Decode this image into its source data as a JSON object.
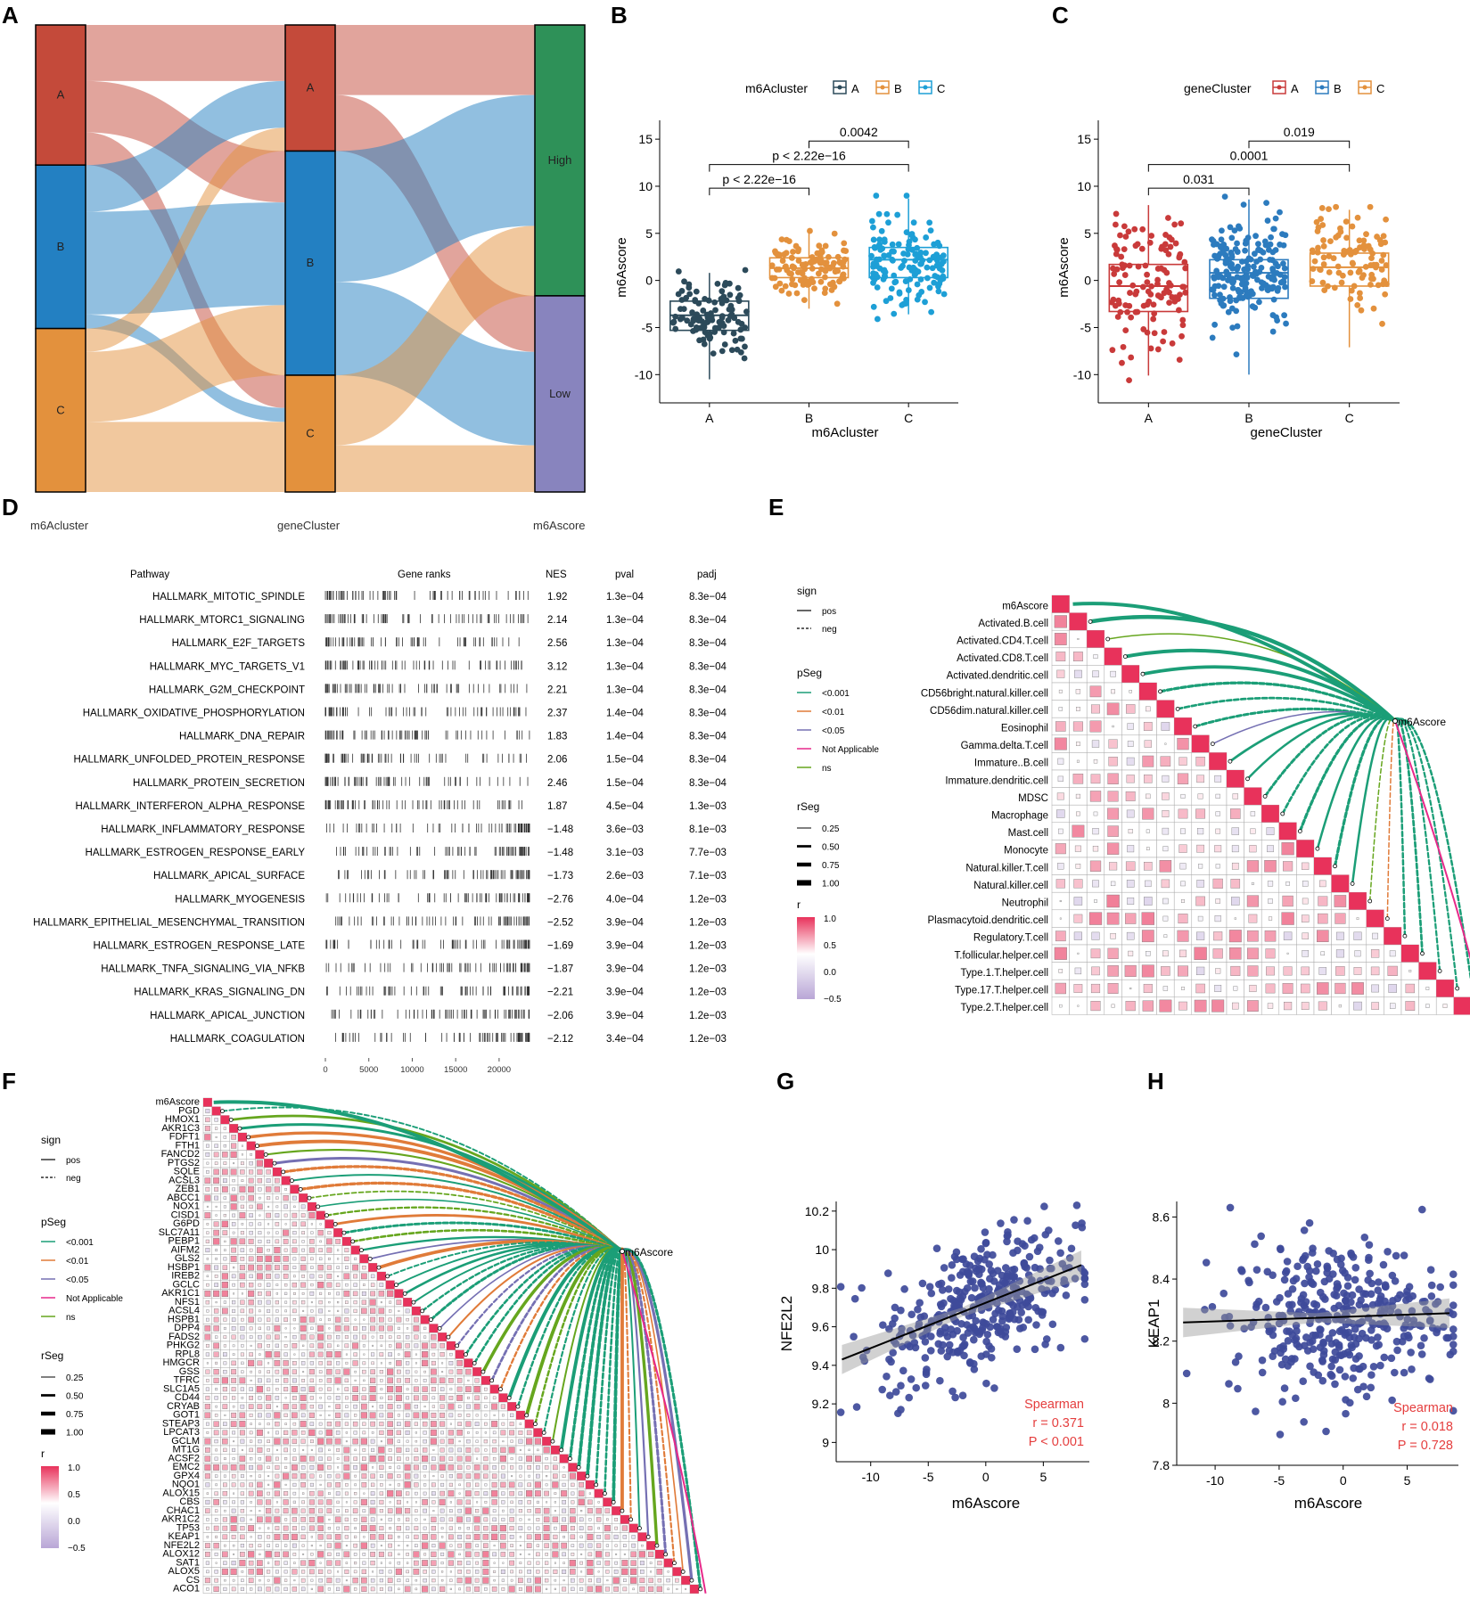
{
  "panel_letters": [
    "A",
    "B",
    "C",
    "D",
    "E",
    "F",
    "G",
    "H"
  ],
  "chart_data": [
    {
      "panel": "A",
      "type": "sankey",
      "axes": [
        "m6Acluster",
        "geneCluster",
        "m6Ascore"
      ],
      "nodes": {
        "m6Acluster": [
          {
            "name": "A",
            "color": "#C44A3A",
            "size": 0.3
          },
          {
            "name": "B",
            "color": "#2380C2",
            "size": 0.35
          },
          {
            "name": "C",
            "color": "#E3913D",
            "size": 0.35
          }
        ],
        "geneCluster": [
          {
            "name": "A",
            "color": "#C44A3A",
            "size": 0.27
          },
          {
            "name": "B",
            "color": "#2380C2",
            "size": 0.48
          },
          {
            "name": "C",
            "color": "#E3913D",
            "size": 0.25
          }
        ],
        "m6Ascore": [
          {
            "name": "High",
            "color": "#2E9158",
            "size": 0.58
          },
          {
            "name": "Low",
            "color": "#8884BE",
            "size": 0.42
          }
        ]
      },
      "flows_stage1": [
        {
          "from": "A",
          "to": "A",
          "value": 0.12
        },
        {
          "from": "A",
          "to": "B",
          "value": 0.11
        },
        {
          "from": "A",
          "to": "C",
          "value": 0.07
        },
        {
          "from": "B",
          "to": "A",
          "value": 0.1
        },
        {
          "from": "B",
          "to": "B",
          "value": 0.22
        },
        {
          "from": "B",
          "to": "C",
          "value": 0.03
        },
        {
          "from": "C",
          "to": "A",
          "value": 0.05
        },
        {
          "from": "C",
          "to": "B",
          "value": 0.15
        },
        {
          "from": "C",
          "to": "C",
          "value": 0.15
        }
      ],
      "flows_stage2": [
        {
          "from": "A",
          "to": "High",
          "value": 0.15
        },
        {
          "from": "A",
          "to": "Low",
          "value": 0.12
        },
        {
          "from": "B",
          "to": "High",
          "value": 0.28
        },
        {
          "from": "B",
          "to": "Low",
          "value": 0.2
        },
        {
          "from": "C",
          "to": "High",
          "value": 0.15
        },
        {
          "from": "C",
          "to": "Low",
          "value": 0.1
        }
      ]
    },
    {
      "panel": "B",
      "type": "boxplot",
      "legend_title": "m6Acluster",
      "groups": [
        {
          "name": "A",
          "color": "#2C4A5A",
          "q1": -5.3,
          "median": -3.7,
          "q3": -2.2,
          "whisker_low": -10.5,
          "whisker_high": 0.8,
          "n": 110
        },
        {
          "name": "B",
          "color": "#E3913D",
          "q1": 0.3,
          "median": 1.3,
          "q3": 2.4,
          "whisker_low": -3.0,
          "whisker_high": 5.5,
          "n": 120
        },
        {
          "name": "C",
          "color": "#1D9FD6",
          "q1": 0.3,
          "median": 2.2,
          "q3": 3.5,
          "whisker_low": -3.6,
          "whisker_high": 8.7,
          "n": 140
        }
      ],
      "comparisons": [
        {
          "g1": "A",
          "g2": "B",
          "label": "p < 2.22e−16",
          "y": 9.8
        },
        {
          "g1": "A",
          "g2": "C",
          "label": "p < 2.22e−16",
          "y": 12.3
        },
        {
          "g1": "B",
          "g2": "C",
          "label": "0.0042",
          "y": 14.8
        }
      ],
      "xlabel": "m6Acluster",
      "ylabel": "m6Ascore",
      "ylim": [
        -13,
        17
      ],
      "yticks": [
        -10,
        -5,
        0,
        5,
        10,
        15
      ]
    },
    {
      "panel": "C",
      "type": "boxplot",
      "legend_title": "geneCluster",
      "groups": [
        {
          "name": "A",
          "color": "#C93A3A",
          "q1": -3.3,
          "median": -0.6,
          "q3": 1.7,
          "whisker_low": -10.1,
          "whisker_high": 8.0,
          "n": 120
        },
        {
          "name": "B",
          "color": "#2C7BBE",
          "q1": -1.9,
          "median": 0.8,
          "q3": 2.2,
          "whisker_low": -10.0,
          "whisker_high": 8.6,
          "n": 190
        },
        {
          "name": "C",
          "color": "#E3913D",
          "q1": -0.6,
          "median": 1.4,
          "q3": 2.9,
          "whisker_low": -7.1,
          "whisker_high": 7.5,
          "n": 100
        }
      ],
      "comparisons": [
        {
          "g1": "A",
          "g2": "B",
          "label": "0.031",
          "y": 9.8
        },
        {
          "g1": "A",
          "g2": "C",
          "label": "0.0001",
          "y": 12.3
        },
        {
          "g1": "B",
          "g2": "C",
          "label": "0.019",
          "y": 14.8
        }
      ],
      "xlabel": "geneCluster",
      "ylabel": "m6Ascore",
      "ylim": [
        -13,
        17
      ],
      "yticks": [
        -10,
        -5,
        0,
        5,
        10,
        15
      ]
    },
    {
      "panel": "D",
      "type": "table",
      "columns": [
        "Pathway",
        "Gene ranks",
        "NES",
        "pval",
        "padj"
      ],
      "rows": [
        [
          "HALLMARK_MITOTIC_SPINDLE",
          "1.92",
          "1.3e−04",
          "8.3e−04"
        ],
        [
          "HALLMARK_MTORC1_SIGNALING",
          "2.14",
          "1.3e−04",
          "8.3e−04"
        ],
        [
          "HALLMARK_E2F_TARGETS",
          "2.56",
          "1.3e−04",
          "8.3e−04"
        ],
        [
          "HALLMARK_MYC_TARGETS_V1",
          "3.12",
          "1.3e−04",
          "8.3e−04"
        ],
        [
          "HALLMARK_G2M_CHECKPOINT",
          "2.21",
          "1.3e−04",
          "8.3e−04"
        ],
        [
          "HALLMARK_OXIDATIVE_PHOSPHORYLATION",
          "2.37",
          "1.4e−04",
          "8.3e−04"
        ],
        [
          "HALLMARK_DNA_REPAIR",
          "1.83",
          "1.4e−04",
          "8.3e−04"
        ],
        [
          "HALLMARK_UNFOLDED_PROTEIN_RESPONSE",
          "2.06",
          "1.5e−04",
          "8.3e−04"
        ],
        [
          "HALLMARK_PROTEIN_SECRETION",
          "2.46",
          "1.5e−04",
          "8.3e−04"
        ],
        [
          "HALLMARK_INTERFERON_ALPHA_RESPONSE",
          "1.87",
          "4.5e−04",
          "1.3e−03"
        ],
        [
          "HALLMARK_INFLAMMATORY_RESPONSE",
          "−1.48",
          "3.6e−03",
          "8.1e−03"
        ],
        [
          "HALLMARK_ESTROGEN_RESPONSE_EARLY",
          "−1.48",
          "3.1e−03",
          "7.7e−03"
        ],
        [
          "HALLMARK_APICAL_SURFACE",
          "−1.73",
          "2.6e−03",
          "7.1e−03"
        ],
        [
          "HALLMARK_MYOGENESIS",
          "−2.76",
          "4.0e−04",
          "1.2e−03"
        ],
        [
          "HALLMARK_EPITHELIAL_MESENCHYMAL_TRANSITION",
          "−2.52",
          "3.9e−04",
          "1.2e−03"
        ],
        [
          "HALLMARK_ESTROGEN_RESPONSE_LATE",
          "−1.69",
          "3.9e−04",
          "1.2e−03"
        ],
        [
          "HALLMARK_TNFA_SIGNALING_VIA_NFKB",
          "−1.87",
          "3.9e−04",
          "1.2e−03"
        ],
        [
          "HALLMARK_KRAS_SIGNALING_DN",
          "−2.21",
          "3.9e−04",
          "1.2e−03"
        ],
        [
          "HALLMARK_APICAL_JUNCTION",
          "−2.06",
          "3.9e−04",
          "1.2e−03"
        ],
        [
          "HALLMARK_COAGULATION",
          "−2.12",
          "3.4e−04",
          "1.2e−03"
        ]
      ],
      "rank_axis_ticks": [
        "0",
        "5000",
        "10000",
        "15000",
        "20000"
      ],
      "rank_axis_values": [
        0,
        5000,
        10000,
        15000,
        20000
      ],
      "rank_axis_max": 23500
    },
    {
      "panel": "E",
      "type": "heatmap",
      "variables": [
        "m6Ascore",
        "Activated.B.cell",
        "Activated.CD4.T.cell",
        "Activated.CD8.T.cell",
        "Activated.dendritic.cell",
        "CD56bright.natural.killer.cell",
        "CD56dim.natural.killer.cell",
        "Eosinophil",
        "Gamma.delta.T.cell",
        "Immature..B.cell",
        "Immature.dendritic.cell",
        "MDSC",
        "Macrophage",
        "Mast.cell",
        "Monocyte",
        "Natural.killer.T.cell",
        "Natural.killer.cell",
        "Neutrophil",
        "Plasmacytoid.dendritic.cell",
        "Regulatory.T.cell",
        "T.follicular.helper.cell",
        "Type.1.T.helper.cell",
        "Type.17.T.helper.cell",
        "Type.2.T.helper.cell"
      ],
      "target_label": "m6Ascore",
      "links": [
        {
          "sign": "pos",
          "p": "<0.001",
          "r": 0.7
        },
        {
          "sign": "pos",
          "p": "ns",
          "r": 0.1
        },
        {
          "sign": "pos",
          "p": "<0.001",
          "r": 0.6
        },
        {
          "sign": "pos",
          "p": "<0.001",
          "r": 0.55
        },
        {
          "sign": "neg",
          "p": "<0.001",
          "r": 0.45
        },
        {
          "sign": "neg",
          "p": "<0.001",
          "r": 0.35
        },
        {
          "sign": "neg",
          "p": "<0.001",
          "r": 0.4
        },
        {
          "sign": "pos",
          "p": "<0.05",
          "r": 0.1
        },
        {
          "sign": "pos",
          "p": "<0.001",
          "r": 0.35
        },
        {
          "sign": "pos",
          "p": "<0.001",
          "r": 0.3
        },
        {
          "sign": "neg",
          "p": "<0.001",
          "r": 0.4
        },
        {
          "sign": "neg",
          "p": "<0.001",
          "r": 0.35
        },
        {
          "sign": "neg",
          "p": "<0.001",
          "r": 0.45
        },
        {
          "sign": "pos",
          "p": "<0.001",
          "r": 0.3
        },
        {
          "sign": "neg",
          "p": "<0.001",
          "r": 0.45
        },
        {
          "sign": "pos",
          "p": "<0.001",
          "r": 0.3
        },
        {
          "sign": "neg",
          "p": "ns",
          "r": 0.1
        },
        {
          "sign": "neg",
          "p": "<0.01",
          "r": 0.1
        },
        {
          "sign": "neg",
          "p": "<0.001",
          "r": 0.3
        },
        {
          "sign": "neg",
          "p": "<0.001",
          "r": 0.35
        },
        {
          "sign": "neg",
          "p": "<0.001",
          "r": 0.25
        },
        {
          "sign": "neg",
          "p": "<0.001",
          "r": 0.25
        },
        {
          "sign": "neg",
          "p": "<0.001",
          "r": 0.3
        }
      ]
    },
    {
      "panel": "F",
      "type": "heatmap",
      "variables": [
        "m6Ascore",
        "PGD",
        "HMOX1",
        "AKR1C3",
        "FDFT1",
        "FTH1",
        "FANCD2",
        "PTGS2",
        "SQLE",
        "ACSL3",
        "ZEB1",
        "ABCC1",
        "NOX1",
        "CISD1",
        "G6PD",
        "SLC7A11",
        "PEBP1",
        "AIFM2",
        "GLS2",
        "HSBP1",
        "IREB2",
        "GCLC",
        "AKR1C1",
        "NFS1",
        "ACSL4",
        "HSPB1",
        "DPP4",
        "FADS2",
        "PHKG2",
        "RPL8",
        "HMGCR",
        "GSS",
        "TFRC",
        "SLC1A5",
        "CD44",
        "CRYAB",
        "GOT1",
        "STEAP3",
        "LPCAT3",
        "GCLM",
        "MT1G",
        "ACSF2",
        "EMC2",
        "GPX4",
        "NQO1",
        "ALOX15",
        "CBS",
        "CHAC1",
        "AKR1C2",
        "TP53",
        "KEAP1",
        "NFE2L2",
        "ALOX12",
        "SAT1",
        "ALOX5",
        "CS",
        "ACO1"
      ],
      "target_label": "m6Ascore"
    },
    {
      "panel": "G",
      "type": "scatter",
      "xlabel": "m6Ascore",
      "ylabel": "NFE2L2",
      "xlim": [
        -13,
        9
      ],
      "ylim": [
        8.9,
        10.25
      ],
      "xticks": [
        -10,
        -5,
        0,
        5
      ],
      "yticks": [
        9.0,
        9.2,
        9.4,
        9.6,
        9.8,
        10.0,
        10.2
      ],
      "fit": {
        "x0": -12.5,
        "y0": 9.43,
        "x1": 8.3,
        "y1": 9.92
      },
      "n": 380,
      "x_mean": -0.5,
      "x_sd": 4.2,
      "y_mean": 9.7,
      "y_sd": 0.19,
      "r_target": 0.371,
      "annotation": [
        "Spearman",
        "r = 0.371",
        "P < 0.001"
      ]
    },
    {
      "panel": "H",
      "type": "scatter",
      "xlabel": "m6Ascore",
      "ylabel": "KEAP1",
      "xlim": [
        -13,
        9
      ],
      "ylim": [
        7.8,
        8.65
      ],
      "xticks": [
        -10,
        -5,
        0,
        5
      ],
      "yticks": [
        7.8,
        8.0,
        8.2,
        8.4,
        8.6
      ],
      "fit": {
        "x0": -12.5,
        "y0": 8.26,
        "x1": 8.3,
        "y1": 8.29
      },
      "n": 380,
      "x_mean": -0.5,
      "x_sd": 4.2,
      "y_mean": 8.28,
      "y_sd": 0.13,
      "r_target": 0.018,
      "annotation": [
        "Spearman",
        "r = 0.018",
        "P = 0.728"
      ]
    }
  ],
  "legends": {
    "sign_title": "sign",
    "sign_items": [
      "pos",
      "neg"
    ],
    "pseg_title": "pSeg",
    "pseg_items": [
      "<0.001",
      "<0.01",
      "<0.05",
      "Not Applicable",
      "ns"
    ],
    "pseg_colors": [
      "#1B9E77",
      "#E07B39",
      "#7570B3",
      "#E7298A",
      "#66A61E"
    ],
    "rseg_title": "rSeg",
    "rseg_items": [
      "0.25",
      "0.50",
      "0.75",
      "1.00"
    ],
    "r_title": "r",
    "r_ticks": [
      "1.0",
      "0.5",
      "0.0",
      "−0.5"
    ],
    "r_low_color": "#B9A6D6",
    "r_high_color": "#E8325B"
  },
  "colors": {
    "accent_red": "#E53E3E",
    "point_blue": "#3E4A9A",
    "link_green": "#1B9E77",
    "diag": "#E8325B"
  }
}
